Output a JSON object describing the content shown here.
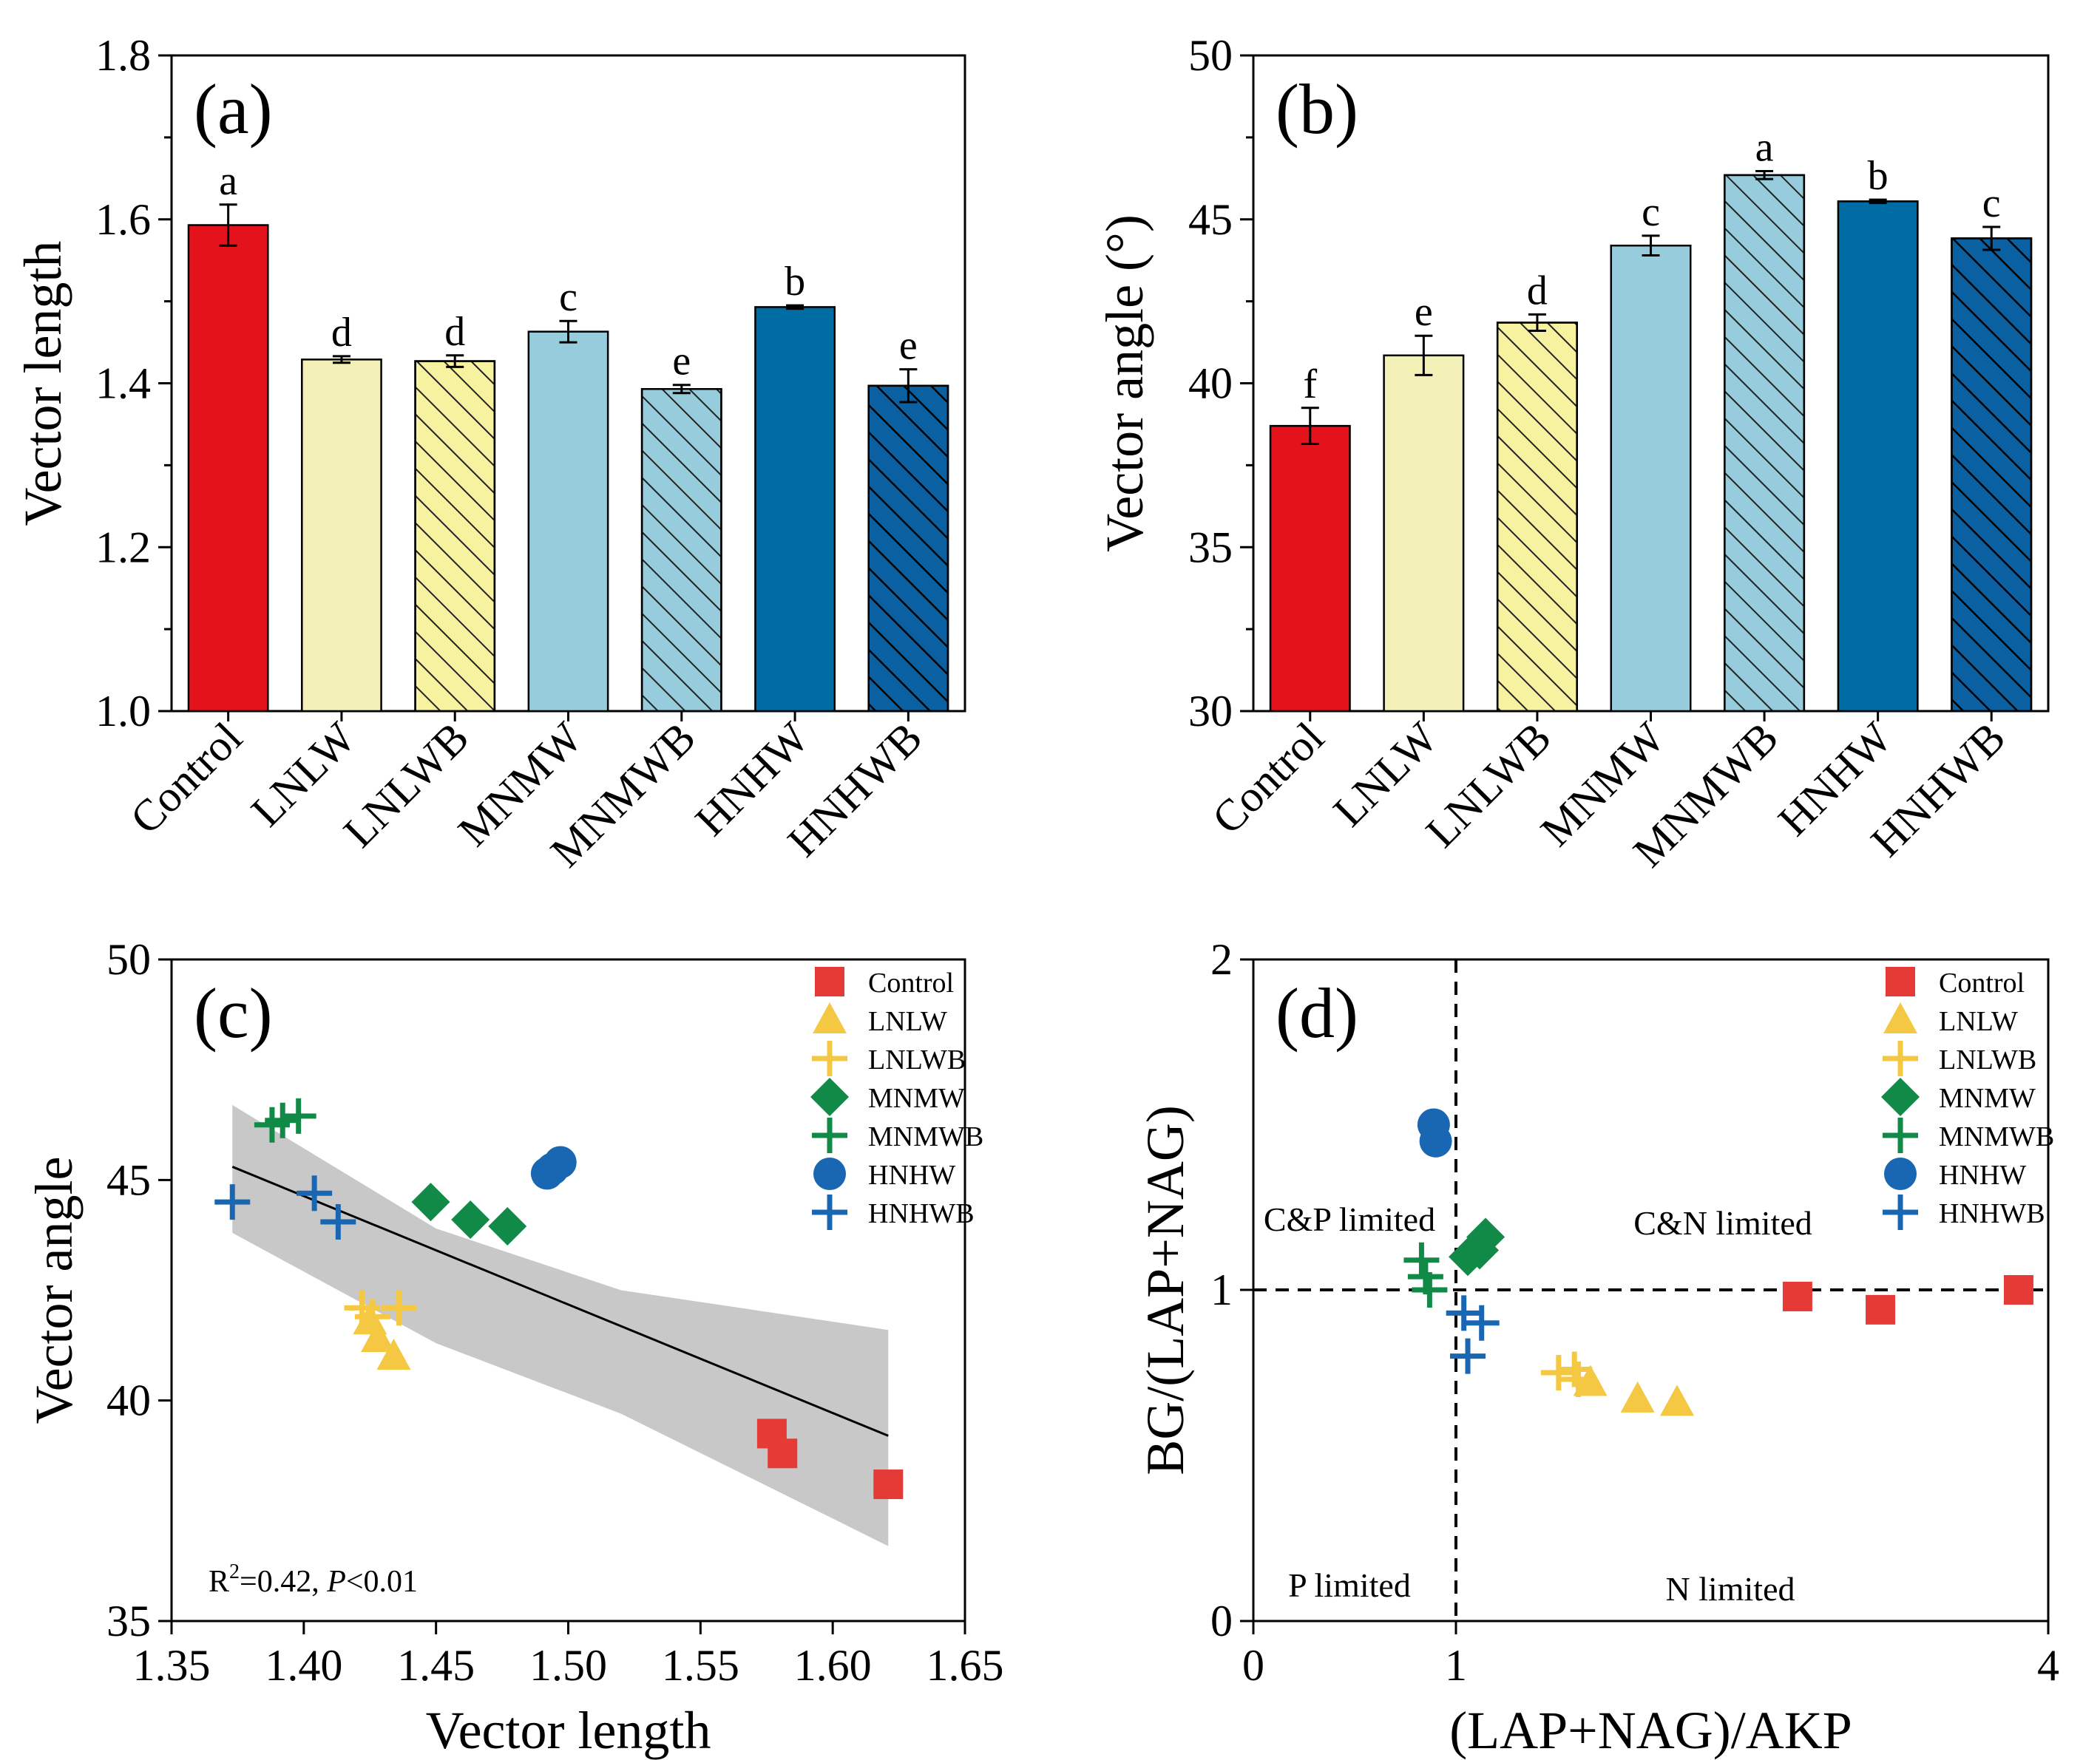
{
  "colors": {
    "Control": "#e3121b",
    "LNLW": "#f3f1b7",
    "LNLWB": "#f7f2a0",
    "MNMW": "#96ccdc",
    "MNMWB": "#96ccdc",
    "HNHW": "#006ca4",
    "HNHWB": "#0a60a0",
    "scatter_Control": "#e53b36",
    "scatter_LNLW": "#f5c843",
    "scatter_MNMW": "#128a47",
    "scatter_HNHW": "#1967b3",
    "band": "#c8c8c8"
  },
  "chart_data": [
    {
      "panel": "(a)",
      "type": "bar",
      "categories": [
        "Control",
        "LNLW",
        "LNLWB",
        "MNMW",
        "MNMWB",
        "HNHW",
        "HNHWB"
      ],
      "values": [
        1.593,
        1.429,
        1.427,
        1.463,
        1.393,
        1.493,
        1.397
      ],
      "errors": [
        0.025,
        0.004,
        0.007,
        0.013,
        0.005,
        0.002,
        0.02
      ],
      "hatched": [
        false,
        false,
        true,
        false,
        true,
        false,
        true
      ],
      "sig_letters": [
        "a",
        "d",
        "d",
        "c",
        "e",
        "b",
        "e"
      ],
      "ylabel": "Vector length",
      "ylim": [
        1.0,
        1.8
      ],
      "yticks": [
        "1.0",
        "1.2",
        "1.4",
        "1.6",
        "1.8"
      ]
    },
    {
      "panel": "(b)",
      "type": "bar",
      "categories": [
        "Control",
        "LNLW",
        "LNLWB",
        "MNMW",
        "MNMWB",
        "HNHW",
        "HNHWB"
      ],
      "values": [
        38.7,
        40.85,
        41.85,
        44.2,
        46.35,
        45.55,
        44.42
      ],
      "errors": [
        0.55,
        0.6,
        0.25,
        0.3,
        0.12,
        0.05,
        0.35
      ],
      "hatched": [
        false,
        false,
        true,
        false,
        true,
        false,
        true
      ],
      "sig_letters": [
        "f",
        "e",
        "d",
        "c",
        "a",
        "b",
        "c"
      ],
      "ylabel": "Vector angle (°)",
      "ylim": [
        30,
        50
      ],
      "yticks": [
        "30",
        "35",
        "40",
        "45",
        "50"
      ]
    },
    {
      "panel": "(c)",
      "type": "scatter",
      "xlabel": "Vector length",
      "ylabel": "Vector angle",
      "xlim": [
        1.35,
        1.65
      ],
      "ylim": [
        35,
        50
      ],
      "xticks": [
        "1.35",
        "1.40",
        "1.45",
        "1.50",
        "1.55",
        "1.60",
        "1.65"
      ],
      "yticks": [
        "35",
        "40",
        "45",
        "50"
      ],
      "regression": {
        "x": [
          1.373,
          1.621
        ],
        "y": [
          45.3,
          39.2
        ],
        "band_upper": [
          46.7,
          41.6
        ],
        "band_lower": [
          43.8,
          36.7
        ]
      },
      "annotation": {
        "r2_prefix": "R",
        "r2_sup": "2",
        "r2_value": "=0.42, ",
        "p_label": "P",
        "p_value": "<0.01"
      },
      "series": [
        {
          "name": "Control",
          "marker": "square",
          "points": [
            [
              1.577,
              39.25
            ],
            [
              1.581,
              38.8
            ],
            [
              1.621,
              38.1
            ]
          ]
        },
        {
          "name": "LNLW",
          "marker": "triangle",
          "points": [
            [
              1.425,
              41.8
            ],
            [
              1.428,
              41.4
            ],
            [
              1.434,
              41.0
            ]
          ]
        },
        {
          "name": "LNLWB",
          "marker": "plus",
          "points": [
            [
              1.422,
              42.1
            ],
            [
              1.426,
              41.9
            ],
            [
              1.436,
              42.1
            ]
          ]
        },
        {
          "name": "MNMW",
          "marker": "diamond",
          "points": [
            [
              1.448,
              44.5
            ],
            [
              1.463,
              44.1
            ],
            [
              1.477,
              43.95
            ]
          ]
        },
        {
          "name": "MNMWB",
          "marker": "plus",
          "points": [
            [
              1.388,
              46.25
            ],
            [
              1.392,
              46.35
            ],
            [
              1.398,
              46.45
            ]
          ]
        },
        {
          "name": "HNHW",
          "marker": "circle",
          "points": [
            [
              1.492,
              45.15
            ],
            [
              1.494,
              45.25
            ],
            [
              1.497,
              45.4
            ]
          ]
        },
        {
          "name": "HNHWB",
          "marker": "plus",
          "points": [
            [
              1.373,
              44.5
            ],
            [
              1.404,
              44.7
            ],
            [
              1.413,
              44.05
            ]
          ]
        }
      ]
    },
    {
      "panel": "(d)",
      "type": "scatter",
      "xlabel": "(LAP+NAG)/AKP",
      "ylabel": "BG/(LAP+NAG)",
      "xticks": [
        "0",
        "1",
        "4"
      ],
      "yticks": [
        "0",
        "1",
        "2"
      ],
      "scale_note": "ratio axes centered on 1",
      "regions": [
        "C&P limited",
        "C&N limited",
        "P limited",
        "N limited"
      ],
      "series": [
        {
          "name": "Control",
          "marker": "square",
          "points": [
            [
              2.73,
              0.98
            ],
            [
              3.15,
              0.94
            ],
            [
              3.85,
              1.0
            ]
          ]
        },
        {
          "name": "LNLW",
          "marker": "triangle",
          "points": [
            [
              1.68,
              0.72
            ],
            [
              1.92,
              0.67
            ],
            [
              2.12,
              0.66
            ]
          ]
        },
        {
          "name": "LNLWB",
          "marker": "plus",
          "points": [
            [
              1.52,
              0.75
            ],
            [
              1.6,
              0.76
            ],
            [
              1.62,
              0.73
            ]
          ]
        },
        {
          "name": "MNMW",
          "marker": "diamond",
          "points": [
            [
              1.06,
              1.1
            ],
            [
              1.12,
              1.12
            ],
            [
              1.15,
              1.16
            ]
          ]
        },
        {
          "name": "MNMWB",
          "marker": "plus",
          "points": [
            [
              0.83,
              1.09
            ],
            [
              0.85,
              1.04
            ],
            [
              0.87,
              1.0
            ]
          ]
        },
        {
          "name": "HNHW",
          "marker": "circle",
          "points": [
            [
              0.89,
              1.5
            ],
            [
              0.9,
              1.45
            ]
          ]
        },
        {
          "name": "HNHWB",
          "marker": "plus",
          "points": [
            [
              1.04,
              0.93
            ],
            [
              1.06,
              0.8
            ],
            [
              1.13,
              0.9
            ]
          ]
        }
      ]
    }
  ],
  "legend": [
    "Control",
    "LNLW",
    "LNLWB",
    "MNMW",
    "MNMWB",
    "HNHW",
    "HNHWB"
  ]
}
